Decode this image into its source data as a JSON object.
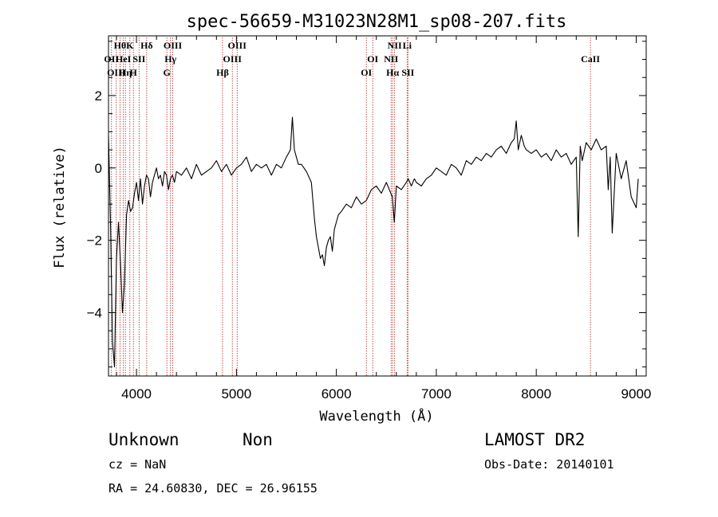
{
  "chart_data": {
    "type": "line",
    "title": "spec-56659-M31023N28M1_sp08-207.fits",
    "xlabel": "Wavelength (Å)",
    "ylabel": "Flux (relative)",
    "xlim": [
      3720,
      9100
    ],
    "ylim": [
      -5.75,
      3.65
    ],
    "xticks": [
      4000,
      5000,
      6000,
      7000,
      8000,
      9000
    ],
    "yticks": [
      -4,
      -2,
      0,
      2
    ],
    "xtick_labels": [
      "4000",
      "5000",
      "6000",
      "7000",
      "8000",
      "9000"
    ],
    "ytick_labels": [
      "−4",
      "−2",
      "0",
      "2"
    ],
    "grid": false,
    "line_color": "#000000",
    "marker_color": "#b22222",
    "series": [
      {
        "x": [
          3720,
          3740,
          3760,
          3780,
          3800,
          3820,
          3840,
          3860,
          3880,
          3900,
          3920,
          3940,
          3960,
          3980,
          4000,
          4020,
          4040,
          4060,
          4080,
          4100,
          4120,
          4140,
          4160,
          4180,
          4200,
          4220,
          4240,
          4260,
          4280,
          4300,
          4320,
          4340,
          4360,
          4380,
          4400,
          4450,
          4500,
          4550,
          4600,
          4650,
          4700,
          4750,
          4800,
          4850,
          4900,
          4950,
          5000,
          5050,
          5100,
          5150,
          5200,
          5250,
          5300,
          5350,
          5400,
          5450,
          5500,
          5540,
          5560,
          5580,
          5600,
          5620,
          5650,
          5700,
          5750,
          5780,
          5800,
          5820,
          5840,
          5860,
          5880,
          5900,
          5920,
          5940,
          5960,
          5980,
          6000,
          6020,
          6050,
          6100,
          6150,
          6200,
          6250,
          6300,
          6350,
          6400,
          6450,
          6500,
          6530,
          6560,
          6580,
          6600,
          6650,
          6700,
          6720,
          6750,
          6780,
          6800,
          6850,
          6900,
          6950,
          7000,
          7050,
          7100,
          7150,
          7200,
          7250,
          7300,
          7350,
          7400,
          7450,
          7500,
          7550,
          7600,
          7650,
          7700,
          7750,
          7780,
          7800,
          7820,
          7850,
          7880,
          7900,
          7950,
          8000,
          8050,
          8100,
          8150,
          8200,
          8250,
          8300,
          8350,
          8400,
          8420,
          8440,
          8460,
          8500,
          8550,
          8600,
          8650,
          8700,
          8720,
          8740,
          8760,
          8800,
          8850,
          8900,
          8950,
          9000,
          9020
        ],
        "y": [
          0.9,
          -1.5,
          -4.8,
          -5.5,
          -2.5,
          -1.5,
          -2.6,
          -4.0,
          -3.2,
          -1.3,
          -0.9,
          -1.2,
          -1.1,
          -0.7,
          -0.4,
          -0.9,
          -0.3,
          -1.0,
          -0.5,
          -0.2,
          -0.3,
          -0.8,
          -0.4,
          -0.2,
          0.0,
          -0.3,
          -0.2,
          -0.5,
          -0.1,
          -0.2,
          -0.6,
          -0.3,
          -0.2,
          -0.4,
          -0.1,
          -0.2,
          0.0,
          -0.3,
          0.1,
          -0.2,
          -0.1,
          0.0,
          0.2,
          -0.1,
          0.1,
          -0.2,
          0.0,
          0.1,
          0.3,
          -0.1,
          0.1,
          0.0,
          0.1,
          -0.2,
          0.1,
          0.0,
          0.3,
          0.5,
          1.4,
          0.5,
          0.3,
          0.1,
          0.1,
          -0.1,
          -0.4,
          -1.4,
          -1.9,
          -2.2,
          -2.5,
          -2.4,
          -2.7,
          -2.2,
          -2.0,
          -1.9,
          -2.3,
          -1.7,
          -1.5,
          -1.3,
          -1.2,
          -1.0,
          -1.1,
          -0.8,
          -1.0,
          -0.9,
          -0.6,
          -0.5,
          -0.7,
          -0.4,
          -0.6,
          -0.8,
          -1.5,
          -0.5,
          -0.6,
          -0.4,
          -0.3,
          -0.5,
          -0.3,
          -0.4,
          -0.5,
          -0.3,
          -0.2,
          0.0,
          -0.1,
          -0.2,
          0.1,
          0.0,
          -0.2,
          0.2,
          0.1,
          0.3,
          0.2,
          0.4,
          0.3,
          0.5,
          0.6,
          0.4,
          0.7,
          0.8,
          1.3,
          0.5,
          0.9,
          0.6,
          0.5,
          0.4,
          0.5,
          0.3,
          0.4,
          0.2,
          0.5,
          0.3,
          0.4,
          0.1,
          0.3,
          -1.9,
          0.6,
          0.2,
          0.7,
          0.5,
          0.8,
          0.5,
          0.6,
          -0.6,
          0.3,
          -1.8,
          0.4,
          -0.3,
          0.2,
          -0.8,
          -1.1,
          -0.3
        ]
      }
    ],
    "lines": [
      {
        "x": 3750,
        "row": 1,
        "label": "OII"
      },
      {
        "x": 3798,
        "row": 2,
        "label": "OIII"
      },
      {
        "x": 3835,
        "row": 0,
        "label": "Hθ"
      },
      {
        "x": 3869,
        "row": 1,
        "label": "HeI"
      },
      {
        "x": 3889,
        "row": 2,
        "label": "Hη"
      },
      {
        "x": 3934,
        "row": 0,
        "label": "K"
      },
      {
        "x": 3969,
        "row": 2,
        "label": "H"
      },
      {
        "x": 4026,
        "row": 1,
        "label": "SII"
      },
      {
        "x": 4102,
        "row": 0,
        "label": "Hδ"
      },
      {
        "x": 4304,
        "row": 2,
        "label": "G"
      },
      {
        "x": 4340,
        "row": 1,
        "label": "Hγ"
      },
      {
        "x": 4363,
        "row": 0,
        "label": "OIII"
      },
      {
        "x": 4861,
        "row": 2,
        "label": "Hβ"
      },
      {
        "x": 4959,
        "row": 1,
        "label": "OIII"
      },
      {
        "x": 5007,
        "row": 0,
        "label": "OIII"
      },
      {
        "x": 6300,
        "row": 2,
        "label": "OI"
      },
      {
        "x": 6364,
        "row": 1,
        "label": "OI"
      },
      {
        "x": 6548,
        "row": 1,
        "label": "NII"
      },
      {
        "x": 6563,
        "row": 2,
        "label": "Hα"
      },
      {
        "x": 6583,
        "row": 0,
        "label": "NII"
      },
      {
        "x": 6708,
        "row": 0,
        "label": "Li"
      },
      {
        "x": 6716,
        "row": 2,
        "label": "SII"
      },
      {
        "x": 8542,
        "row": 1,
        "label": "CaII"
      }
    ]
  },
  "info": {
    "object_class": "Unknown",
    "object_subclass": "Non",
    "survey": "LAMOST DR2",
    "cz": "cz = NaN",
    "obs_date": "Obs-Date: 20140101",
    "radec": "RA =  24.60830, DEC =  26.96155"
  }
}
